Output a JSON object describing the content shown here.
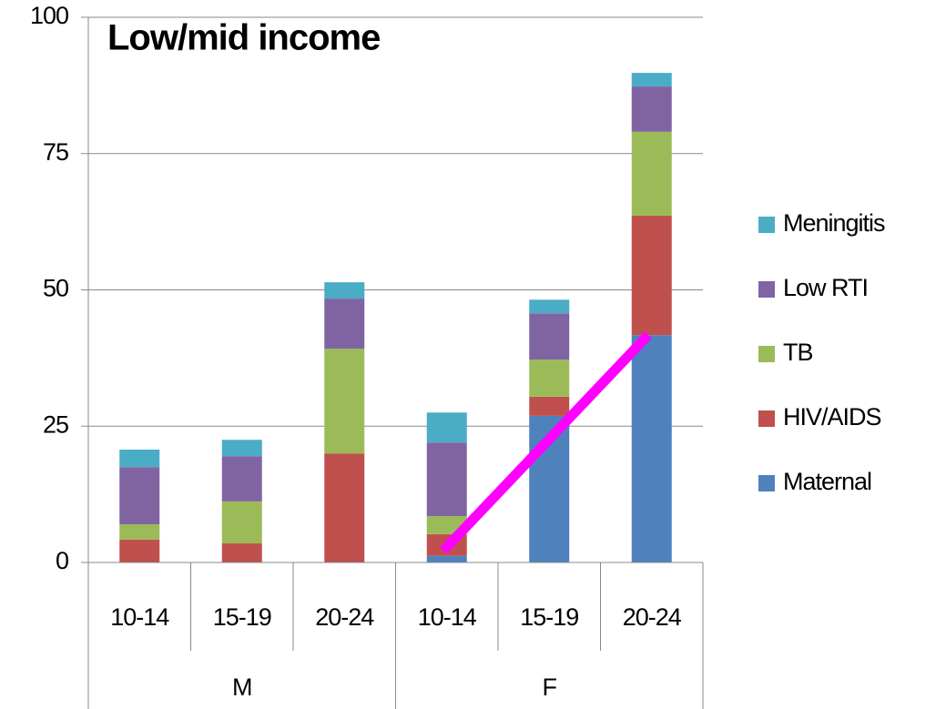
{
  "chart_data": {
    "type": "stacked_bar",
    "title": "Low/mid income",
    "groups": [
      {
        "name": "M",
        "categories": [
          "10-14",
          "15-19",
          "20-24"
        ]
      },
      {
        "name": "F",
        "categories": [
          "10-14",
          "15-19",
          "20-24"
        ]
      }
    ],
    "series": [
      {
        "name": "Maternal",
        "color": "#4f81bd",
        "values": [
          0,
          0,
          0,
          1.2,
          26.9,
          41.7
        ]
      },
      {
        "name": "HIV/AIDS",
        "color": "#c0504d",
        "values": [
          4.2,
          3.5,
          20.0,
          4.0,
          3.5,
          21.9
        ]
      },
      {
        "name": "TB",
        "color": "#9bbb59",
        "values": [
          2.8,
          7.7,
          19.2,
          3.3,
          6.8,
          15.4
        ]
      },
      {
        "name": "Low RTI",
        "color": "#8064a2",
        "values": [
          10.5,
          8.3,
          9.2,
          13.5,
          8.5,
          8.3
        ]
      },
      {
        "name": "Meningitis",
        "color": "#4bacc6",
        "values": [
          3.2,
          3.0,
          3.0,
          5.5,
          2.5,
          2.5
        ]
      }
    ],
    "ylim": [
      0,
      100
    ],
    "yticks": [
      0,
      25,
      50,
      75,
      100
    ],
    "grid": true,
    "legend": "right"
  }
}
